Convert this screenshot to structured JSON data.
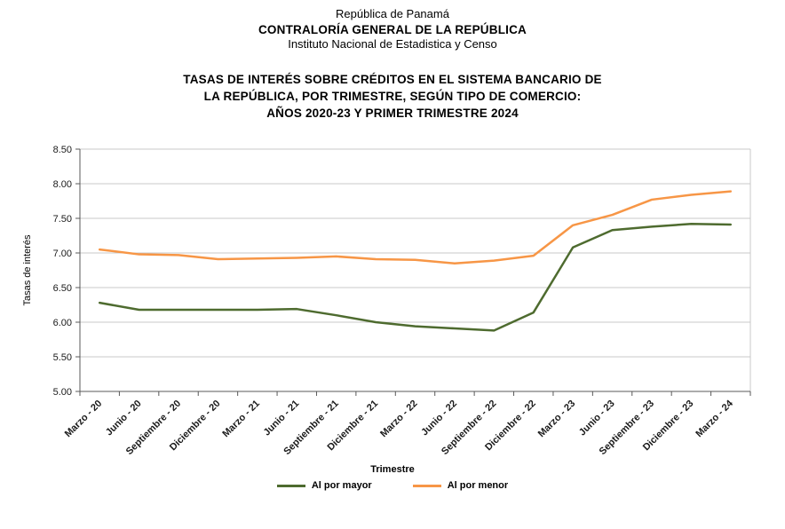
{
  "header": {
    "line1": "República de Panamá",
    "line2": "CONTRALORÍA GENERAL DE LA REPÚBLICA",
    "line3": "Instituto Nacional de Estadistica y Censo"
  },
  "title": {
    "line1": "TASAS DE INTERÉS SOBRE CRÉDITOS EN EL SISTEMA BANCARIO DE",
    "line2": "LA REPÚBLICA, POR TRIMESTRE, SEGÚN TIPO DE COMERCIO:",
    "line3": "AÑOS 2020-23 Y PRIMER TRIMESTRE 2024"
  },
  "chart_data": {
    "type": "line",
    "categories": [
      "Marzo - 20",
      "Junio - 20",
      "Septiembre - 20",
      "Diciembre - 20",
      "Marzo - 21",
      "Junio - 21",
      "Septiembre - 21",
      "Diciembre - 21",
      "Marzo - 22",
      "Junio - 22",
      "Septiembre - 22",
      "Diciembre - 22",
      "Marzo - 23",
      "Junio - 23",
      "Septiembre - 23",
      "Diciembre - 23",
      "Marzo - 24"
    ],
    "series": [
      {
        "name": "Al por mayor",
        "color": "#4e6b2f",
        "values": [
          6.28,
          6.18,
          6.18,
          6.18,
          6.18,
          6.19,
          6.1,
          6.0,
          5.94,
          5.91,
          5.88,
          6.14,
          7.08,
          7.33,
          7.38,
          7.42,
          7.41
        ]
      },
      {
        "name": "Al por menor",
        "color": "#f79646",
        "values": [
          7.05,
          6.98,
          6.97,
          6.91,
          6.92,
          6.93,
          6.95,
          6.91,
          6.9,
          6.85,
          6.89,
          6.96,
          7.4,
          7.55,
          7.77,
          7.84,
          7.89
        ]
      }
    ],
    "xlabel": "Trimestre",
    "ylabel": "Tasas de interés",
    "ylim": [
      5.0,
      8.5
    ],
    "ytick_step": 0.5,
    "ytick_labels": [
      "5.00",
      "5.50",
      "6.00",
      "6.50",
      "7.00",
      "7.50",
      "8.00",
      "8.50"
    ],
    "grid": true,
    "legend_position": "bottom",
    "colors": {
      "grid": "#c9c9c9",
      "axis": "#595959",
      "tick_text": "#1a1a1a"
    }
  }
}
